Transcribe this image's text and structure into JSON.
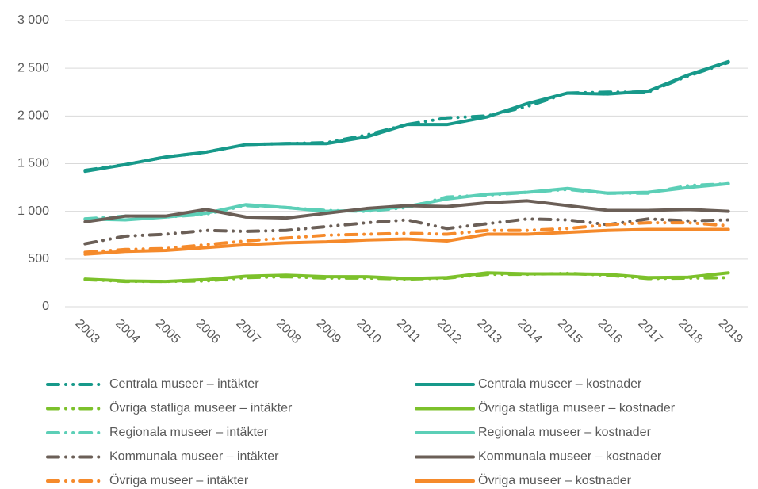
{
  "chart_data": {
    "type": "line",
    "categories": [
      "2003",
      "2004",
      "2005",
      "2006",
      "2007",
      "2008",
      "2009",
      "2010",
      "2011",
      "2012",
      "2013",
      "2014",
      "2015",
      "2016",
      "2017",
      "2018",
      "2019"
    ],
    "ylim": [
      0,
      3000
    ],
    "yticks": [
      {
        "value": 0,
        "label": "0"
      },
      {
        "value": 500,
        "label": "500"
      },
      {
        "value": 1000,
        "label": "1 000"
      },
      {
        "value": 1500,
        "label": "1 500"
      },
      {
        "value": 2000,
        "label": "2 000"
      },
      {
        "value": 2500,
        "label": "2 500"
      },
      {
        "value": 3000,
        "label": "3 000"
      }
    ],
    "grid": true,
    "legend": "bottom",
    "series": [
      {
        "name": "Centrala museer – intäkter",
        "color": "#17998a",
        "style": "dashed",
        "values": [
          1430,
          1490,
          1570,
          1620,
          1700,
          1710,
          1720,
          1800,
          1910,
          1980,
          2000,
          2100,
          2240,
          2250,
          2250,
          2420,
          2560
        ]
      },
      {
        "name": "Centrala museer – kostnader",
        "color": "#17998a",
        "style": "solid",
        "values": [
          1420,
          1490,
          1570,
          1620,
          1700,
          1710,
          1710,
          1780,
          1910,
          1910,
          1990,
          2130,
          2240,
          2230,
          2260,
          2430,
          2570
        ]
      },
      {
        "name": "Övriga statliga museer – intäkter",
        "color": "#7cc12b",
        "style": "dashed",
        "values": [
          285,
          265,
          265,
          270,
          305,
          315,
          300,
          300,
          290,
          300,
          340,
          340,
          350,
          330,
          295,
          300,
          305
        ]
      },
      {
        "name": "Övriga statliga museer – kostnader",
        "color": "#7cc12b",
        "style": "solid",
        "values": [
          290,
          270,
          265,
          285,
          320,
          330,
          315,
          315,
          295,
          305,
          355,
          345,
          345,
          340,
          305,
          310,
          355
        ]
      },
      {
        "name": "Regionala museer – intäkter",
        "color": "#5ccfb7",
        "style": "dashed",
        "values": [
          920,
          950,
          940,
          970,
          1060,
          1040,
          1010,
          1000,
          1040,
          1150,
          1170,
          1200,
          1230,
          1190,
          1190,
          1270,
          1290
        ]
      },
      {
        "name": "Regionala museer – kostnader",
        "color": "#5ccfb7",
        "style": "solid",
        "values": [
          920,
          910,
          940,
          980,
          1070,
          1040,
          1000,
          1010,
          1050,
          1130,
          1180,
          1200,
          1240,
          1190,
          1200,
          1250,
          1290
        ]
      },
      {
        "name": "Kommunala museer – intäkter",
        "color": "#6b5f57",
        "style": "dashed",
        "values": [
          660,
          740,
          760,
          800,
          790,
          800,
          840,
          880,
          910,
          820,
          870,
          920,
          910,
          860,
          920,
          900,
          910
        ]
      },
      {
        "name": "Kommunala museer – kostnader",
        "color": "#6b5f57",
        "style": "solid",
        "values": [
          890,
          950,
          950,
          1020,
          940,
          930,
          980,
          1030,
          1060,
          1050,
          1090,
          1110,
          1060,
          1010,
          1010,
          1020,
          1000
        ]
      },
      {
        "name": "Övriga museer – intäkter",
        "color": "#f58a2b",
        "style": "dashed",
        "values": [
          570,
          600,
          610,
          650,
          690,
          720,
          750,
          760,
          770,
          760,
          800,
          800,
          820,
          860,
          880,
          880,
          850
        ]
      },
      {
        "name": "Övriga museer – kostnader",
        "color": "#f58a2b",
        "style": "solid",
        "values": [
          550,
          580,
          590,
          620,
          650,
          670,
          680,
          700,
          710,
          690,
          760,
          760,
          780,
          800,
          810,
          810,
          810
        ]
      }
    ]
  }
}
